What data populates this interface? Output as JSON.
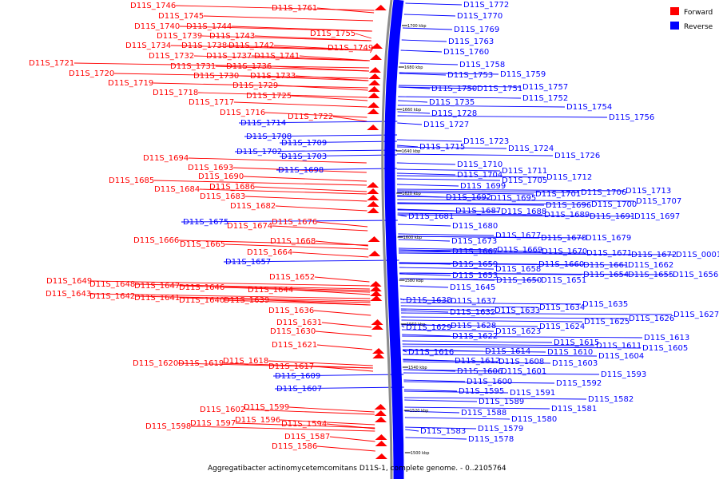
{
  "caption": "Aggregatibacter actinomycetemcomitans D11S-1, complete genome. - 0..2105764",
  "legend": {
    "forward": {
      "label": "Forward",
      "color": "#ff0000"
    },
    "reverse": {
      "label": "Reverse",
      "color": "#0000ff"
    }
  },
  "scale_ticks": [
    "1700 kbp",
    "1680 kbp",
    "1660 kbp",
    "1640 kbp",
    "1620 kbp",
    "1600 kbp",
    "1580 kbp",
    "1560 kbp",
    "1540 kbp",
    "1520 kbp",
    "1500 kbp"
  ],
  "forward_labels": [
    "D11S_1746",
    "D11S_1761",
    "D11S_1745",
    "D11S_1740",
    "D11S_1744",
    "D11S_1739",
    "D11S_1743",
    "D11S_1755",
    "D11S_1734",
    "D11S_1738",
    "D11S_1742",
    "D11S_1749",
    "D11S_1732",
    "D11S_1737",
    "D11S_1741",
    "D11S_1721",
    "D11S_1731",
    "D11S_1736",
    "D11S_1720",
    "D11S_1730",
    "D11S_1733",
    "D11S_1719",
    "D11S_1729",
    "D11S_1718",
    "D11S_1725",
    "D11S_1717",
    "D11S_1716",
    "D11S_1722",
    "D11S_1694",
    "D11S_1693",
    "D11S_1690",
    "D11S_1685",
    "D11S_1686",
    "D11S_1684",
    "D11S_1683",
    "D11S_1682",
    "D11S_1676",
    "D11S_1674",
    "D11S_1666",
    "D11S_1668",
    "D11S_1665",
    "D11S_1664",
    "D11S_1652",
    "D11S_1649",
    "D11S_1648",
    "D11S_1647",
    "D11S_1646",
    "D11S_1644",
    "D11S_1643",
    "D11S_1642",
    "D11S_1641",
    "D11S_1640",
    "D11S_1639",
    "D11S_1636",
    "D11S_1631",
    "D11S_1630",
    "D11S_1621",
    "D11S_1618",
    "D11S_1620",
    "D11S_1619",
    "D11S_1617",
    "D11S_1602",
    "D11S_1599",
    "D11S_1597",
    "D11S_1596",
    "D11S_1598",
    "D11S_1594",
    "D11S_1587",
    "D11S_1586"
  ],
  "reverse_labels": [
    "D11S_1772",
    "D11S_1770",
    "D11S_1769",
    "D11S_1763",
    "D11S_1760",
    "D11S_1758",
    "D11S_1753",
    "D11S_1759",
    "D11S_1750",
    "D11S_1751",
    "D11S_1757",
    "D11S_1752",
    "D11S_1735",
    "D11S_1754",
    "D11S_1728",
    "D11S_1756",
    "D11S_1714",
    "D11S_1727",
    "D11S_1708",
    "D11S_1709",
    "D11S_1723",
    "D11S_1715",
    "D11S_1724",
    "D11S_1702",
    "D11S_1703",
    "D11S_1726",
    "D11S_1710",
    "D11S_1698",
    "D11S_1711",
    "D11S_1704",
    "D11S_1705",
    "D11S_1712",
    "D11S_1699",
    "D11S_1701",
    "D11S_1706",
    "D11S_1713",
    "D11S_1692",
    "D11S_1695",
    "D11S_1696",
    "D11S_1700",
    "D11S_1707",
    "D11S_1687",
    "D11S_1688",
    "D11S_1689",
    "D11S_1691",
    "D11S_1697",
    "D11S_1681",
    "D11S_1675",
    "D11S_1680",
    "D11S_1677",
    "D11S_1678",
    "D11S_1679",
    "D11S_1673",
    "D11S_1667",
    "D11S_1669",
    "D11S_1670",
    "D11S_1671",
    "D11S_1672",
    "D11S_0001",
    "D11S_1657",
    "D11S_1659",
    "D11S_1660",
    "D11S_1661",
    "D11S_1662",
    "D11S_1658",
    "D11S_1653",
    "D11S_1650",
    "D11S_1651",
    "D11S_1654",
    "D11S_1655",
    "D11S_1656",
    "D11S_1645",
    "D11S_1638",
    "D11S_1637",
    "D11S_1635",
    "D11S_1632",
    "D11S_1633",
    "D11S_1634",
    "D11S_1627",
    "D11S_1625",
    "D11S_1626",
    "D11S_1629",
    "D11S_1628",
    "D11S_1624",
    "D11S_1623",
    "D11S_1622",
    "D11S_1613",
    "D11S_1615",
    "D11S_1611",
    "D11S_1605",
    "D11S_1616",
    "D11S_1614",
    "D11S_1610",
    "D11S_1604",
    "D11S_1612",
    "D11S_1608",
    "D11S_1603",
    "D11S_1606",
    "D11S_1601",
    "D11S_1593",
    "D11S_1609",
    "D11S_1600",
    "D11S_1592",
    "D11S_1607",
    "D11S_1595",
    "D11S_1591",
    "D11S_1582",
    "D11S_1589",
    "D11S_1581",
    "D11S_1588",
    "D11S_1580",
    "D11S_1583",
    "D11S_1579",
    "D11S_1578"
  ]
}
